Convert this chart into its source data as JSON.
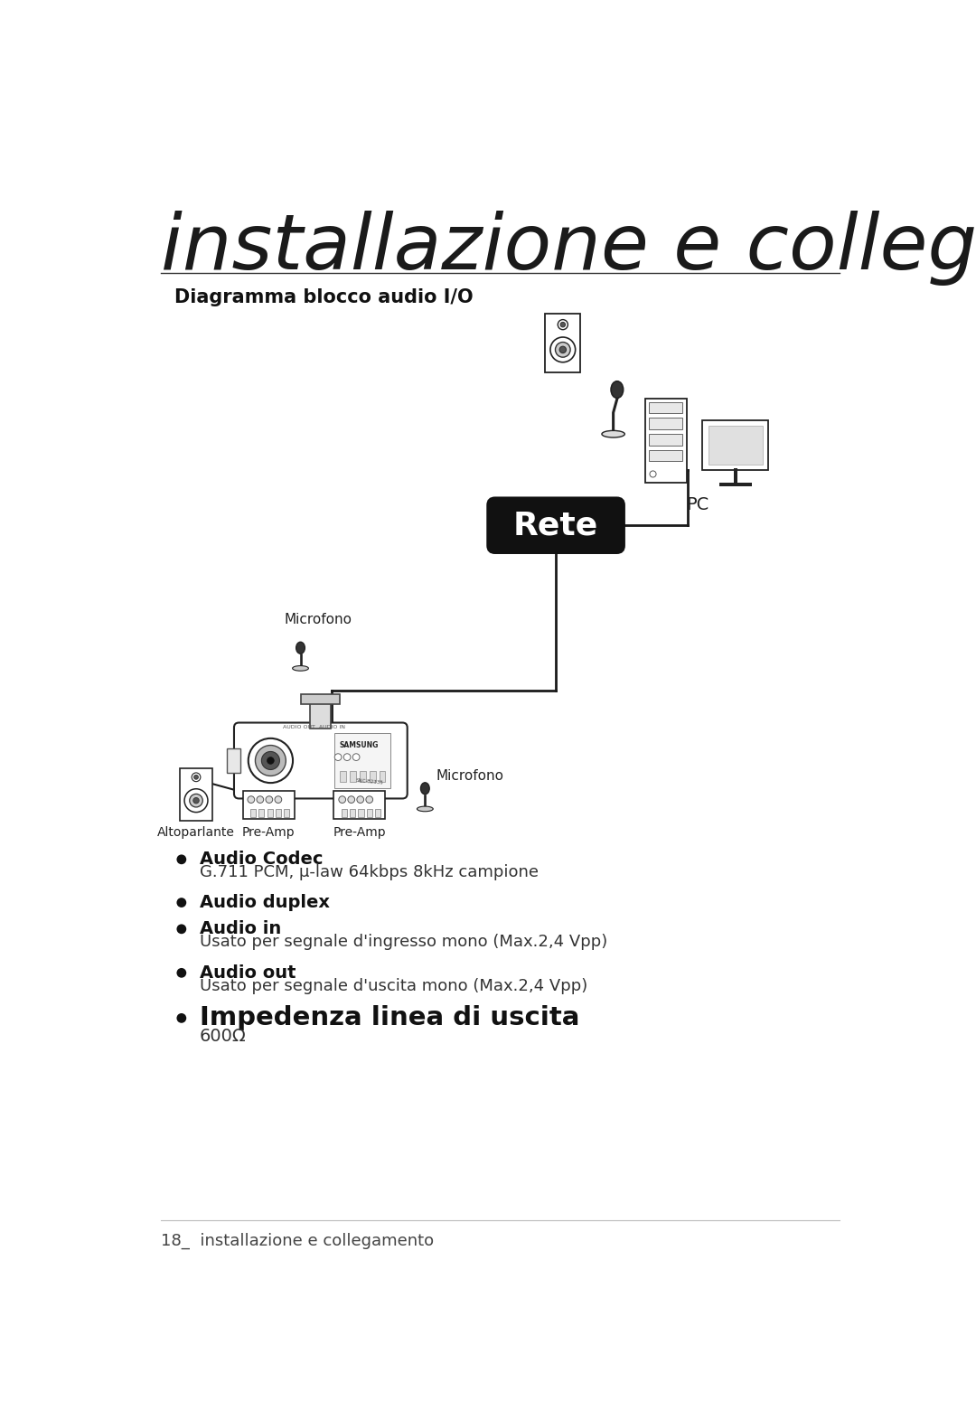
{
  "title": "installazione e collegamento",
  "subtitle": "Diagramma blocco audio I/O",
  "bg_color": "#ffffff",
  "title_fontsize": 62,
  "title_color": "#1a1a1a",
  "subtitle_fontsize": 15,
  "rete_label": "Rete",
  "pc_label": "PC",
  "microfono_label1": "Microfono",
  "microfono_label2": "Microfono",
  "altoparlante_label": "Altoparlante",
  "preamp_label1": "Pre-Amp",
  "preamp_label2": "Pre-Amp",
  "bullets": [
    {
      "bold": "Audio Codec",
      "normal": "G.711 PCM, μ-law 64kbps 8kHz campione"
    },
    {
      "bold": "Audio duplex",
      "normal": ""
    },
    {
      "bold": "Audio in",
      "normal": "Usato per segnale d'ingresso mono (Max.2,4 Vpp)"
    },
    {
      "bold": "Audio out",
      "normal": "Usato per segnale d'uscita mono (Max.2,4 Vpp)"
    },
    {
      "bold": "Impedenza linea di uscita",
      "normal": "600Ω",
      "bold_size": 21
    }
  ],
  "footer": "18_  installazione e collegamento",
  "footer_fontsize": 13,
  "line_color": "#1a1a1a",
  "line_width": 2.0
}
